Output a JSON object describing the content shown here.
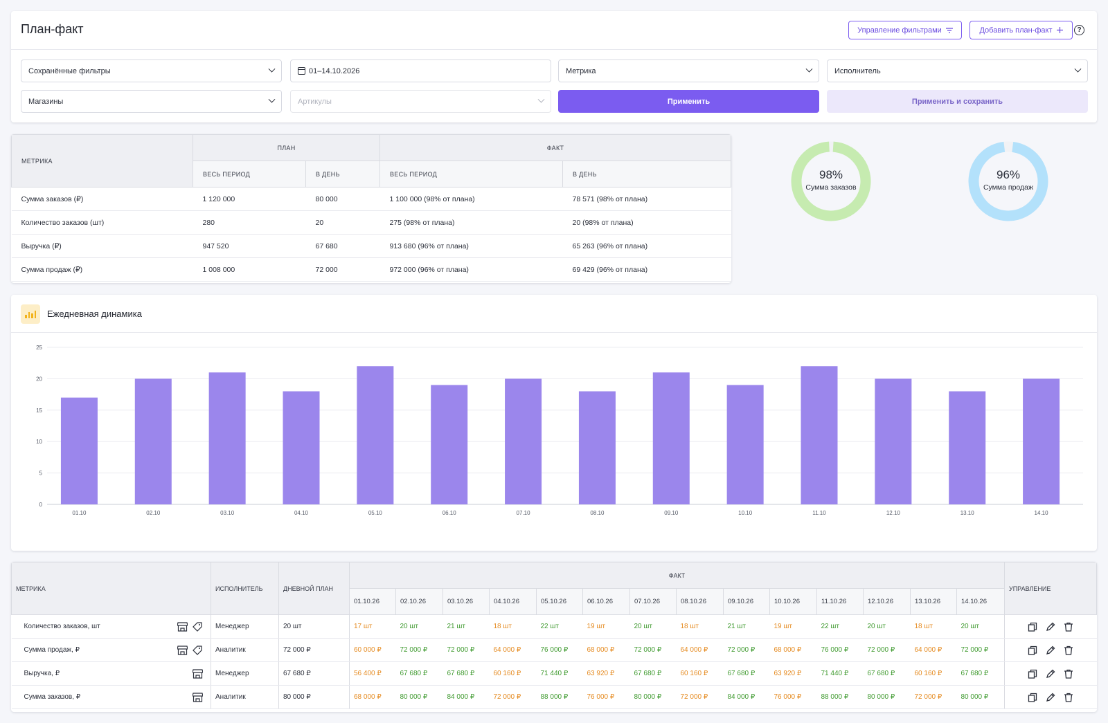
{
  "header": {
    "title": "План-факт",
    "manage_filters_label": "Управление фильтрами",
    "add_plan_label": "Добавить план-факт",
    "help_label": "?"
  },
  "filters": {
    "saved_filters": "Сохранённые фильтры",
    "date_range": "01–14.10.2026",
    "metric": "Метрика",
    "executor": "Исполнитель",
    "stores": "Магазины",
    "articles_placeholder": "Артикулы",
    "apply_label": "Применить",
    "apply_save_label": "Применить и сохранить"
  },
  "plan_table": {
    "col_metric": "МЕТРИКА",
    "col_plan": "ПЛАН",
    "col_fact": "ФАКТ",
    "col_whole_period": "ВЕСЬ ПЕРИОД",
    "col_per_day": "В ДЕНЬ",
    "rows": [
      {
        "metric": "Сумма заказов (₽)",
        "plan_period": "1 120 000",
        "plan_day": "80 000",
        "fact_period": "1 100 000 (98% от плана)",
        "fact_day": "78 571 (98% от плана)"
      },
      {
        "metric": "Количество заказов (шт)",
        "plan_period": "280",
        "plan_day": "20",
        "fact_period": "275 (98% от плана)",
        "fact_day": "20 (98% от плана)"
      },
      {
        "metric": "Выручка (₽)",
        "plan_period": "947 520",
        "plan_day": "67 680",
        "fact_period": "913 680 (96% от плана)",
        "fact_day": "65 263 (96% от плана)"
      },
      {
        "metric": "Сумма продаж (₽)",
        "plan_period": "1 008 000",
        "plan_day": "72 000",
        "fact_period": "972 000 (96% от плана)",
        "fact_day": "69 429 (96% от плана)"
      }
    ]
  },
  "donuts": [
    {
      "percent": "98%",
      "label": "Сумма заказов",
      "value": 0.98,
      "color": "#c6ebb0"
    },
    {
      "percent": "96%",
      "label": "Сумма продаж",
      "value": 0.96,
      "color": "#b3e1fb"
    }
  ],
  "chart_section": {
    "title": "Ежедневная динамика"
  },
  "chart_data": {
    "type": "bar",
    "categories": [
      "01.10",
      "02.10",
      "03.10",
      "04.10",
      "05.10",
      "06.10",
      "07.10",
      "08.10",
      "09.10",
      "10.10",
      "11.10",
      "12.10",
      "13.10",
      "14.10"
    ],
    "values": [
      17,
      20,
      21,
      18,
      22,
      19,
      20,
      18,
      21,
      19,
      22,
      20,
      18,
      20
    ],
    "yticks": [
      "0",
      "5",
      "10",
      "15",
      "20",
      "25"
    ],
    "ylim": [
      0,
      25
    ],
    "bar_color": "#9b86ec",
    "grid": true
  },
  "detail_table": {
    "col_metric": "МЕТРИКА",
    "col_executor": "ИСПОЛНИТЕЛЬ",
    "col_daily_plan": "ДНЕВНОЙ ПЛАН",
    "col_fact": "ФАКТ",
    "col_manage": "УПРАВЛЕНИЕ",
    "dates": [
      "01.10.26",
      "02.10.26",
      "03.10.26",
      "04.10.26",
      "05.10.26",
      "06.10.26",
      "07.10.26",
      "08.10.26",
      "09.10.26",
      "10.10.26",
      "11.10.26",
      "12.10.26",
      "13.10.26",
      "14.10.26"
    ],
    "rows": [
      {
        "metric": "Количество заказов, шт",
        "icons": [
          "store-icon",
          "tag-icon"
        ],
        "executor": "Менеджер",
        "daily_plan": "20 шт",
        "values": [
          "17 шт",
          "20 шт",
          "21 шт",
          "18 шт",
          "22 шт",
          "19 шт",
          "20 шт",
          "18 шт",
          "21 шт",
          "19 шт",
          "22 шт",
          "20 шт",
          "18 шт",
          "20 шт"
        ],
        "status": [
          "o",
          "g",
          "g",
          "o",
          "g",
          "o",
          "g",
          "o",
          "g",
          "o",
          "g",
          "g",
          "o",
          "g"
        ]
      },
      {
        "metric": "Сумма продаж, ₽",
        "icons": [
          "store-icon",
          "tag-icon"
        ],
        "executor": "Аналитик",
        "daily_plan": "72 000 ₽",
        "values": [
          "60 000 ₽",
          "72 000 ₽",
          "72 000 ₽",
          "64 000 ₽",
          "76 000 ₽",
          "68 000 ₽",
          "72 000 ₽",
          "64 000 ₽",
          "72 000 ₽",
          "68 000 ₽",
          "76 000 ₽",
          "72 000 ₽",
          "64 000 ₽",
          "72 000 ₽"
        ],
        "status": [
          "o",
          "g",
          "g",
          "o",
          "g",
          "o",
          "g",
          "o",
          "g",
          "o",
          "g",
          "g",
          "o",
          "g"
        ]
      },
      {
        "metric": "Выручка, ₽",
        "icons": [
          "store-icon"
        ],
        "executor": "Менеджер",
        "daily_plan": "67 680 ₽",
        "values": [
          "56 400 ₽",
          "67 680 ₽",
          "67 680 ₽",
          "60 160 ₽",
          "71 440 ₽",
          "63 920 ₽",
          "67 680 ₽",
          "60 160 ₽",
          "67 680 ₽",
          "63 920 ₽",
          "71 440 ₽",
          "67 680 ₽",
          "60 160 ₽",
          "67 680 ₽"
        ],
        "status": [
          "o",
          "g",
          "g",
          "o",
          "g",
          "o",
          "g",
          "o",
          "g",
          "o",
          "g",
          "g",
          "o",
          "g"
        ]
      },
      {
        "metric": "Сумма заказов, ₽",
        "icons": [
          "store-icon"
        ],
        "executor": "Аналитик",
        "daily_plan": "80 000 ₽",
        "values": [
          "68 000 ₽",
          "80 000 ₽",
          "84 000 ₽",
          "72 000 ₽",
          "88 000 ₽",
          "76 000 ₽",
          "80 000 ₽",
          "72 000 ₽",
          "84 000 ₽",
          "76 000 ₽",
          "88 000 ₽",
          "80 000 ₽",
          "72 000 ₽",
          "80 000 ₽"
        ],
        "status": [
          "o",
          "g",
          "g",
          "o",
          "g",
          "o",
          "g",
          "o",
          "g",
          "o",
          "g",
          "g",
          "o",
          "g"
        ]
      }
    ],
    "colors": {
      "o": "#e58a1f",
      "g": "#3f9a2f"
    }
  }
}
